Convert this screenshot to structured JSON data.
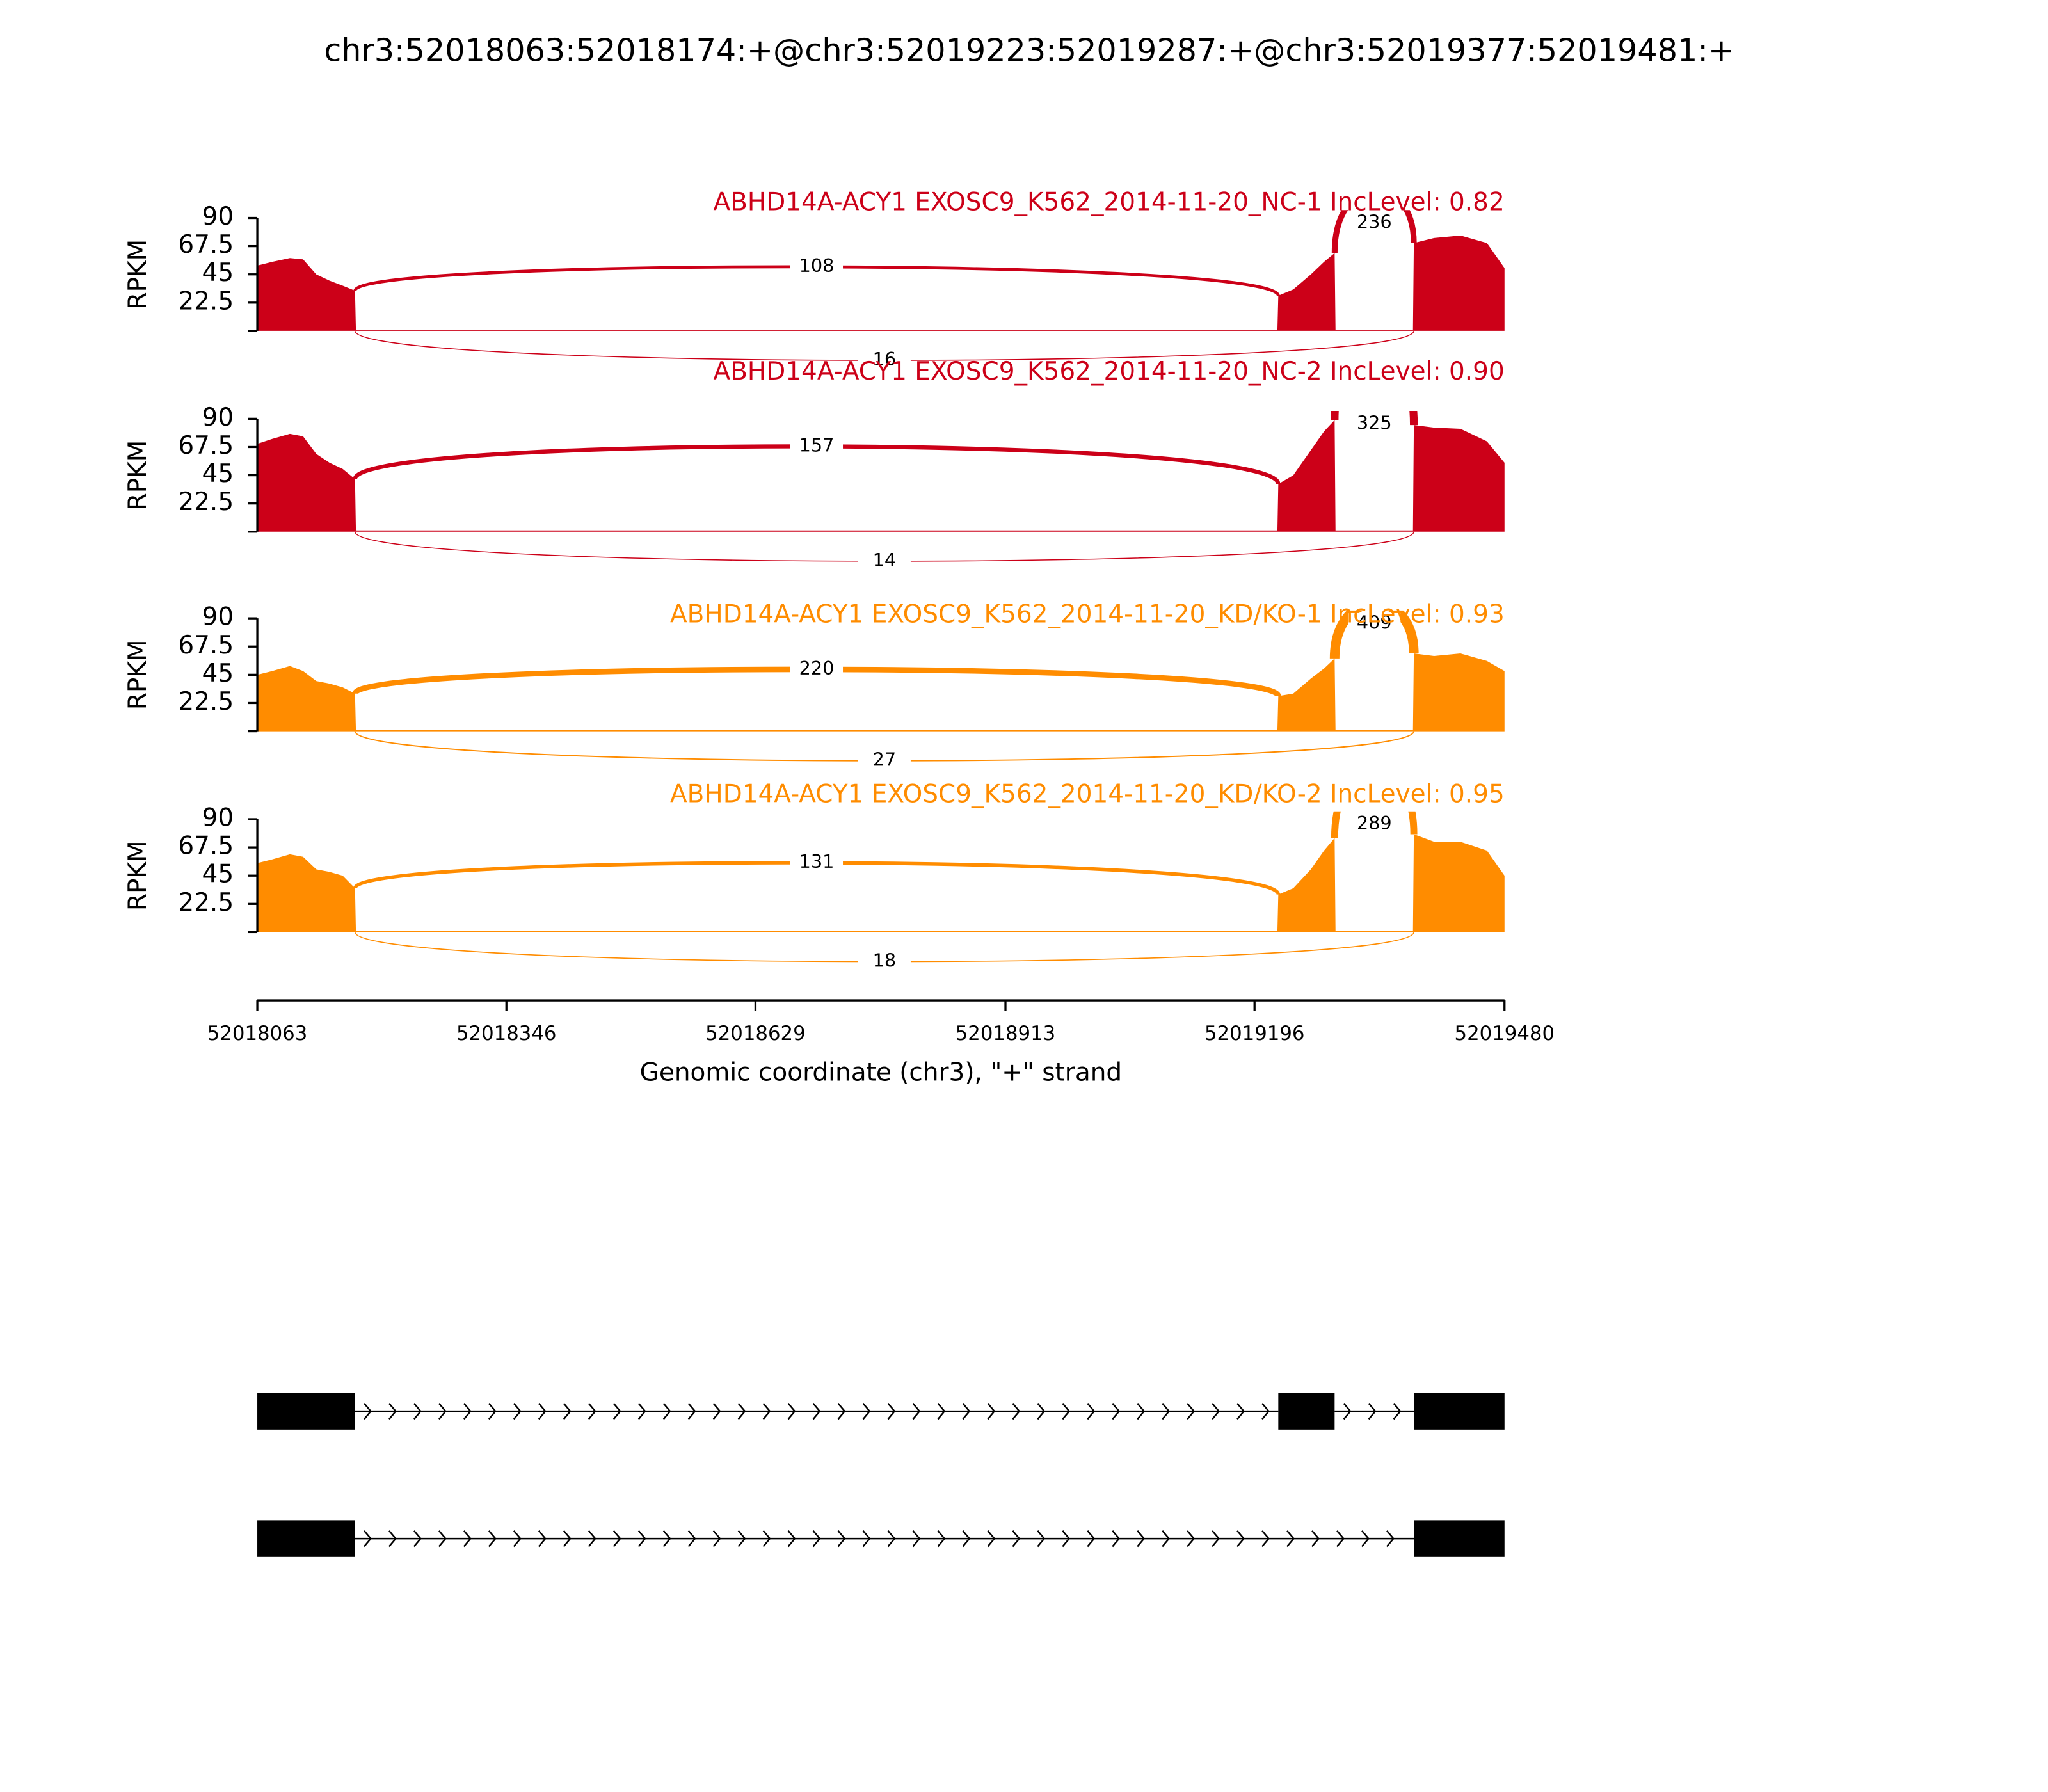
{
  "chart_data": {
    "type": "sashimi",
    "title": "chr3:52018063:52018174:+@chr3:52019223:52019287:+@chr3:52019377:52019481:+",
    "ylabel": "RPKM",
    "xlabel": "Genomic coordinate (chr3), \"+\" strand",
    "ylim": [
      0,
      90
    ],
    "yticks": [
      22.5,
      45,
      67.5,
      90
    ],
    "xlim": [
      52018063,
      52019480
    ],
    "xticks": [
      52018063,
      52018346,
      52018629,
      52018913,
      52019196,
      52019480
    ],
    "positions": [
      52018063,
      52018080,
      52018100,
      52018115,
      52018130,
      52018145,
      52018160,
      52018174,
      52018175,
      52018400,
      52018700,
      52019000,
      52019222,
      52019223,
      52019240,
      52019260,
      52019275,
      52019287,
      52019288,
      52019376,
      52019377,
      52019400,
      52019430,
      52019460,
      52019480
    ],
    "tracks": [
      {
        "name": "ABHD14A-ACY1 EXOSC9_K562_2014-11-20_NC-1 IncLevel: 0.82",
        "color": "#cc0018",
        "coverage": [
          52,
          55,
          58,
          57,
          45,
          40,
          36,
          32,
          1,
          1,
          1,
          1,
          1,
          28,
          33,
          45,
          55,
          62,
          1,
          1,
          70,
          74,
          76,
          70,
          50
        ],
        "junctions": [
          {
            "start": 52018174,
            "end": 52019223,
            "count": 108
          },
          {
            "start": 52019287,
            "end": 52019377,
            "count": 236
          },
          {
            "start": 52018174,
            "end": 52019377,
            "count": 16
          }
        ]
      },
      {
        "name": "ABHD14A-ACY1 EXOSC9_K562_2014-11-20_NC-2 IncLevel: 0.90",
        "color": "#cc0018",
        "coverage": [
          70,
          74,
          78,
          76,
          62,
          55,
          50,
          42,
          1,
          1,
          1,
          1,
          1,
          38,
          45,
          65,
          80,
          89,
          1,
          1,
          85,
          83,
          82,
          72,
          55
        ],
        "junctions": [
          {
            "start": 52018174,
            "end": 52019223,
            "count": 157
          },
          {
            "start": 52019287,
            "end": 52019377,
            "count": 325
          },
          {
            "start": 52018174,
            "end": 52019377,
            "count": 14
          }
        ]
      },
      {
        "name": "ABHD14A-ACY1 EXOSC9_K562_2014-11-20_KD/KO-1 IncLevel: 0.93",
        "color": "#ff8c00",
        "coverage": [
          45,
          48,
          52,
          48,
          40,
          38,
          35,
          30,
          1,
          1,
          1,
          1,
          1,
          28,
          30,
          42,
          50,
          58,
          1,
          1,
          62,
          60,
          62,
          56,
          48
        ],
        "junctions": [
          {
            "start": 52018174,
            "end": 52019223,
            "count": 220
          },
          {
            "start": 52019287,
            "end": 52019377,
            "count": 409
          },
          {
            "start": 52018174,
            "end": 52019377,
            "count": 27
          }
        ]
      },
      {
        "name": "ABHD14A-ACY1 EXOSC9_K562_2014-11-20_KD/KO-2 IncLevel: 0.95",
        "color": "#ff8c00",
        "coverage": [
          55,
          58,
          62,
          60,
          50,
          48,
          45,
          35,
          1,
          1,
          1,
          1,
          1,
          30,
          35,
          50,
          65,
          75,
          1,
          1,
          78,
          72,
          72,
          65,
          45
        ],
        "junctions": [
          {
            "start": 52018174,
            "end": 52019223,
            "count": 131
          },
          {
            "start": 52019287,
            "end": 52019377,
            "count": 289
          },
          {
            "start": 52018174,
            "end": 52019377,
            "count": 18
          }
        ]
      }
    ],
    "transcripts": [
      {
        "exons": [
          [
            52018063,
            52018174
          ],
          [
            52019223,
            52019287
          ],
          [
            52019377,
            52019481
          ]
        ]
      },
      {
        "exons": [
          [
            52018063,
            52018174
          ],
          [
            52019377,
            52019481
          ]
        ]
      }
    ]
  }
}
